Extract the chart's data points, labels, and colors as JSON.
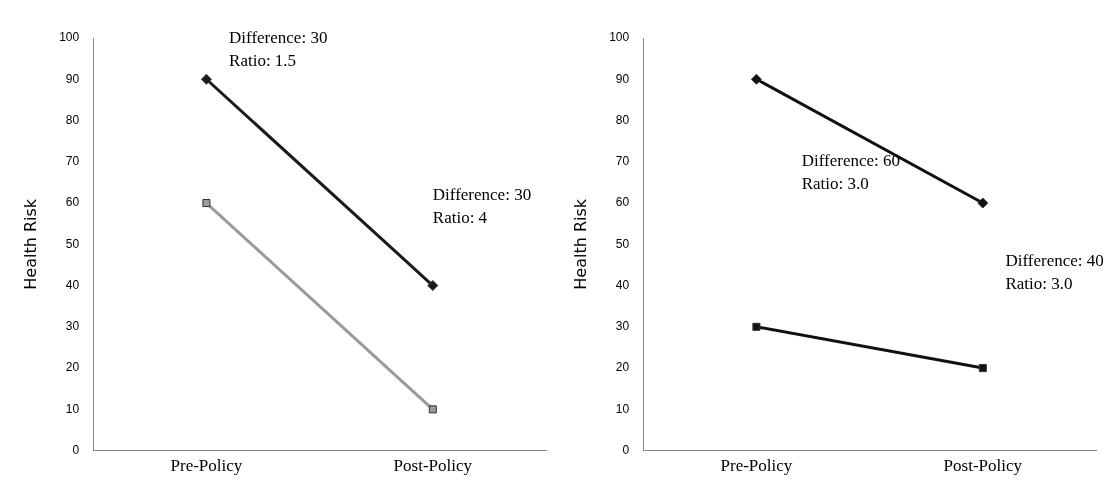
{
  "chart_data": [
    {
      "type": "line",
      "categories": [
        "Pre-Policy",
        "Post-Policy"
      ],
      "ylabel": "Health Risk",
      "ylim": [
        0,
        100
      ],
      "yticks": [
        0,
        10,
        20,
        30,
        40,
        50,
        60,
        70,
        80,
        90,
        100
      ],
      "grid": false,
      "legend": false,
      "series": [
        {
          "color": "#1a1a1a",
          "marker": "diamond",
          "values": [
            90,
            40
          ]
        },
        {
          "color": "#9a9a9a",
          "marker": "square",
          "values": [
            60,
            10
          ]
        }
      ],
      "annotations": [
        "Difference: 30\nRatio: 1.5",
        "Difference: 30\nRatio: 4"
      ]
    },
    {
      "type": "line",
      "categories": [
        "Pre-Policy",
        "Post-Policy"
      ],
      "ylabel": "Health Risk",
      "ylim": [
        0,
        100
      ],
      "yticks": [
        0,
        10,
        20,
        30,
        40,
        50,
        60,
        70,
        80,
        90,
        100
      ],
      "grid": false,
      "legend": false,
      "series": [
        {
          "color": "#111111",
          "marker": "diamond",
          "values": [
            90,
            60
          ]
        },
        {
          "color": "#111111",
          "marker": "square",
          "values": [
            30,
            20
          ]
        }
      ],
      "annotations": [
        "Difference: 60\nRatio: 3.0",
        "Difference: 40\nRatio: 3.0"
      ]
    }
  ]
}
